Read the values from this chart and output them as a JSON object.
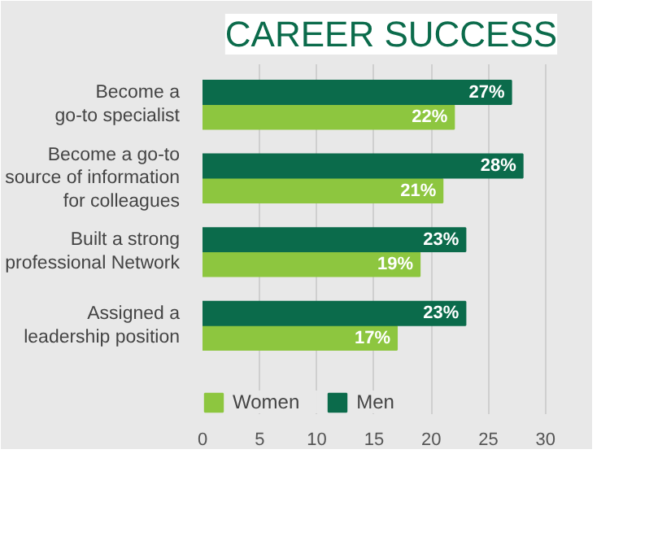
{
  "chart_data": {
    "type": "bar",
    "orientation": "horizontal",
    "title": "CAREER SUCCESS",
    "categories": [
      "Become a\ngo-to specialist",
      "Become a go-to\nsource of information\nfor colleagues",
      "Built a strong\nprofessional Network",
      "Assigned a\nleadership position"
    ],
    "series": [
      {
        "name": "Women",
        "color": "#8dc63f",
        "values": [
          22,
          21,
          19,
          17
        ],
        "value_labels": [
          "22%",
          "21%",
          "19%",
          "17%"
        ]
      },
      {
        "name": "Men",
        "color": "#0b6b4b",
        "values": [
          27,
          28,
          23,
          23
        ],
        "value_labels": [
          "27%",
          "28%",
          "23%",
          "23%"
        ]
      }
    ],
    "xlim": [
      0,
      33
    ],
    "xticks": [
      0,
      5,
      10,
      15,
      20,
      25,
      30
    ],
    "grid": "x",
    "legend": "bottom left"
  }
}
